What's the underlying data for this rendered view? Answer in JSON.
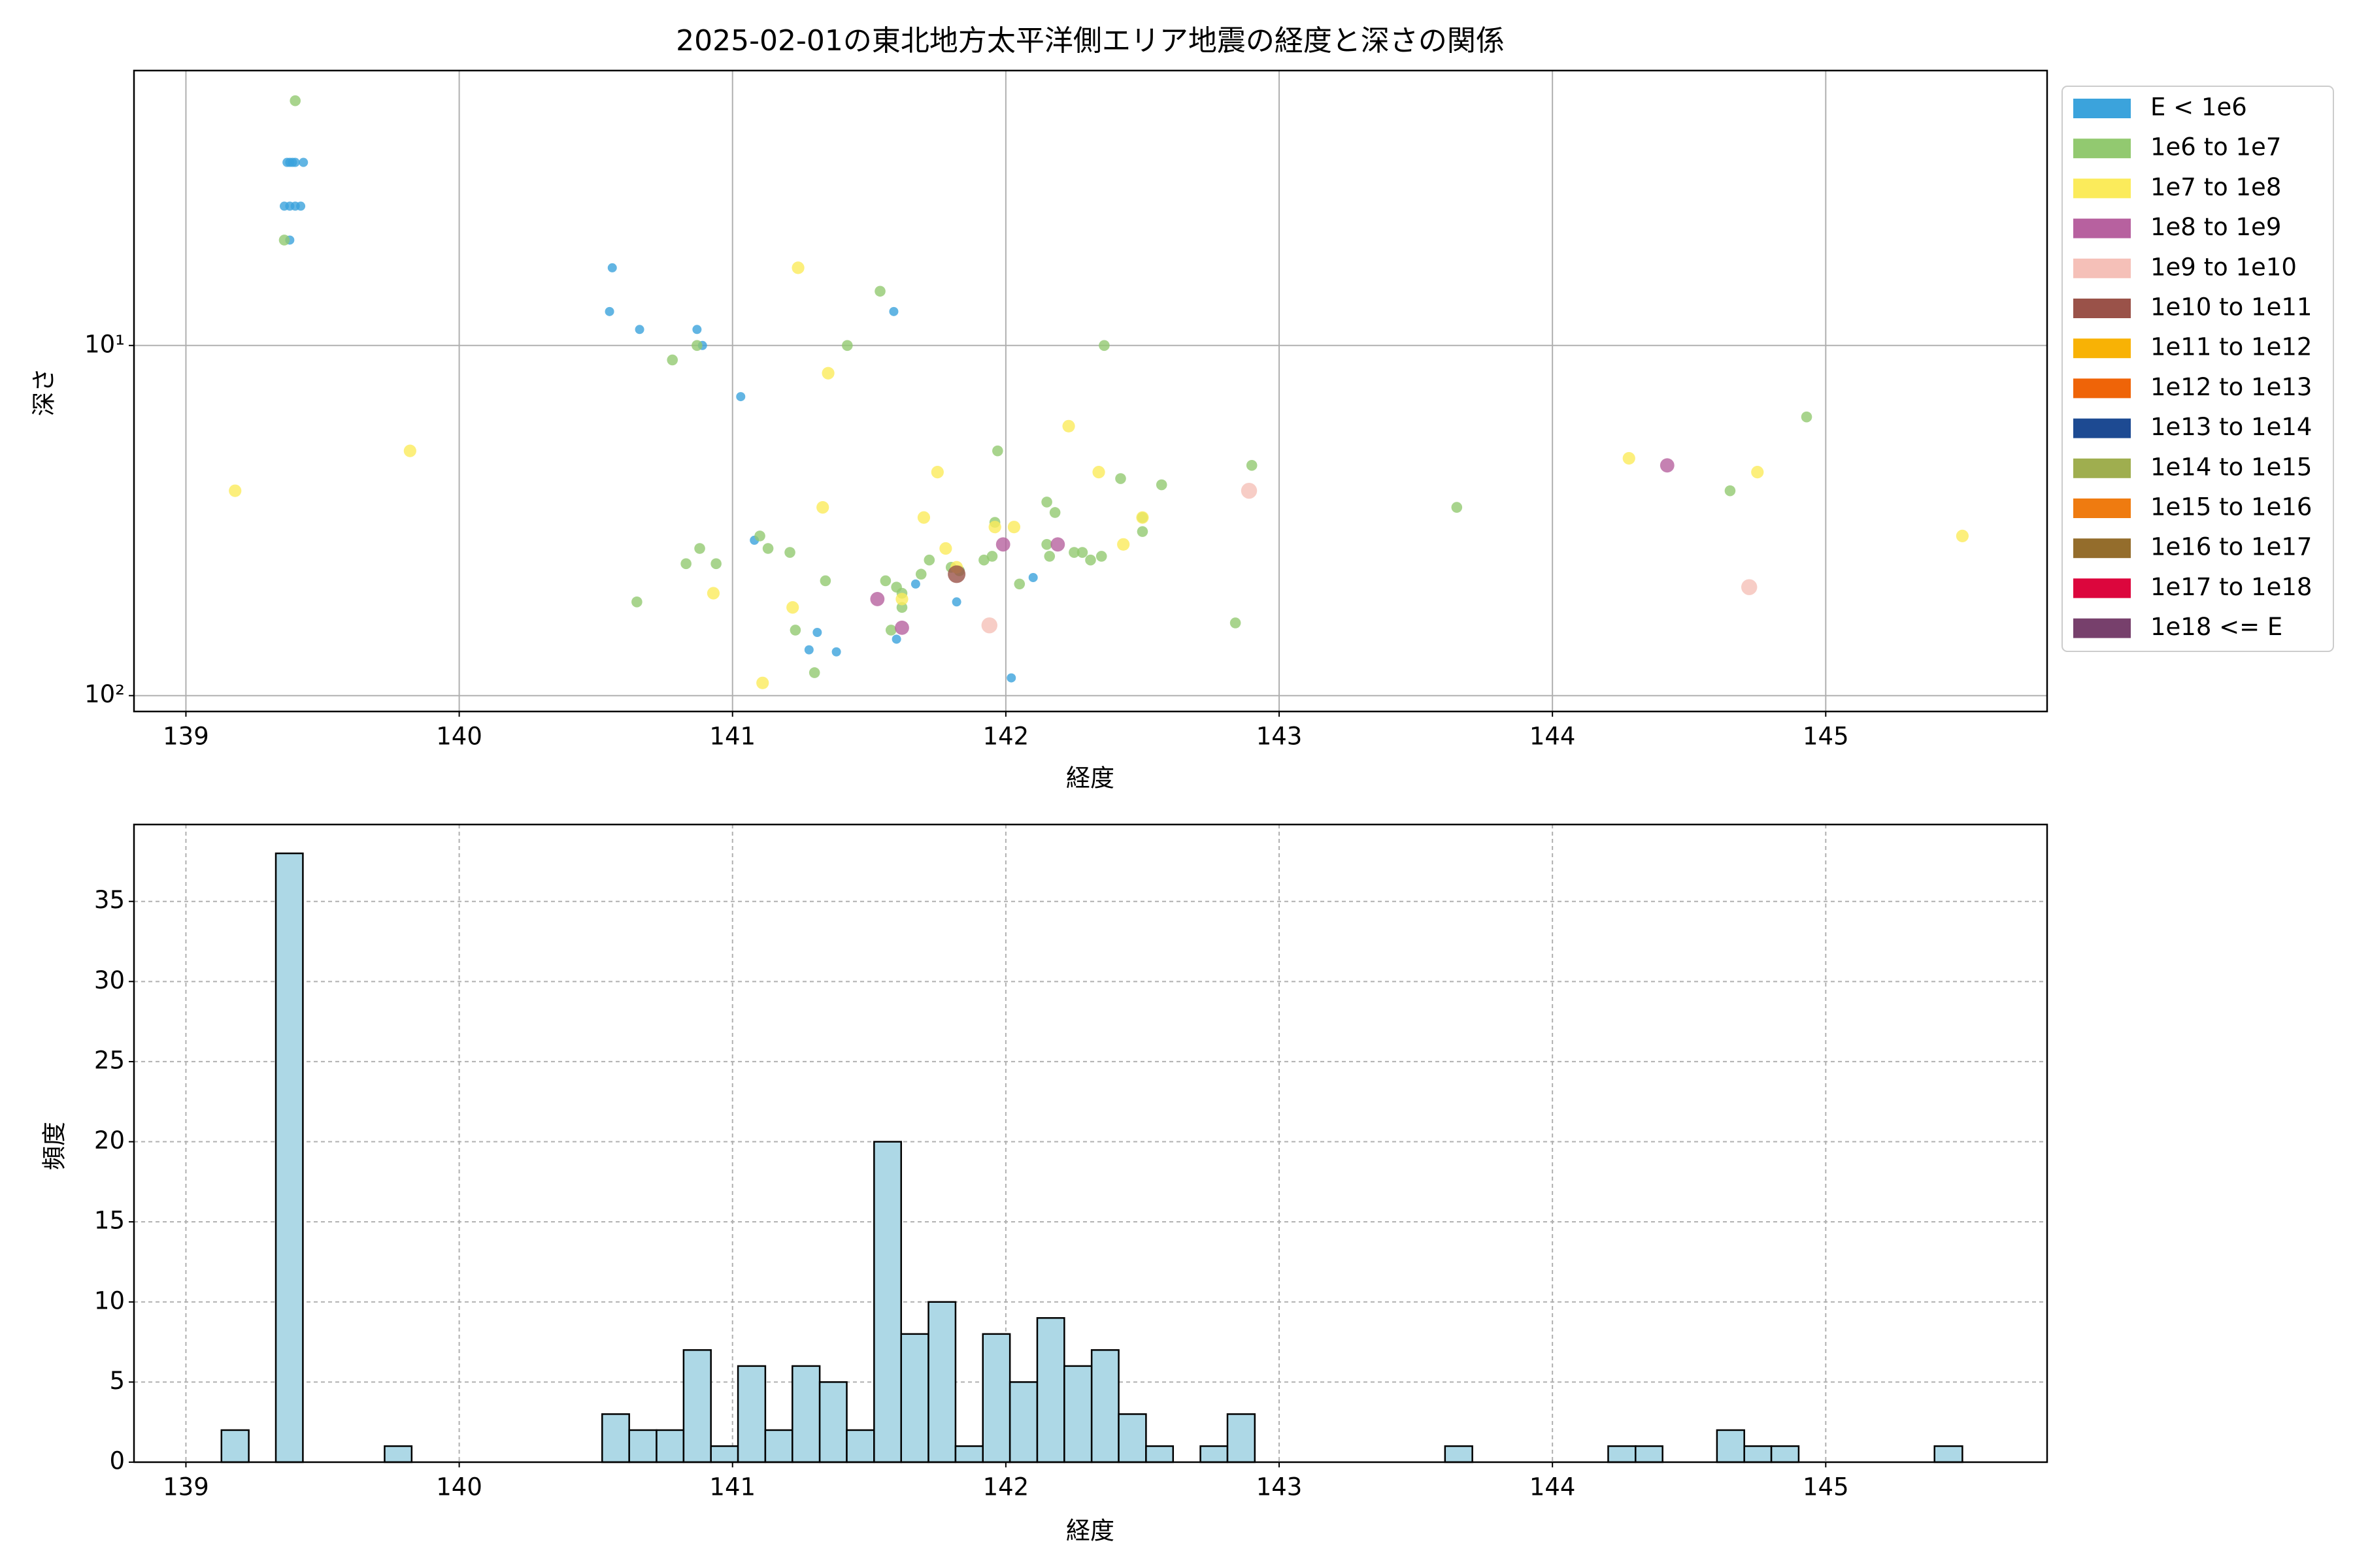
{
  "chart_data": [
    {
      "type": "scatter",
      "title": "2025-02-01の東北地方太平洋側エリア地震の経度と深さの関係",
      "xlabel": "経度",
      "ylabel": "深さ",
      "xlim": [
        138.81,
        145.81
      ],
      "xticks": [
        139,
        140,
        141,
        142,
        143,
        144,
        145
      ],
      "ylim": [
        111,
        1.64
      ],
      "yticks": [
        {
          "value": 10,
          "label": "10¹"
        },
        {
          "value": 100,
          "label": "10²"
        }
      ],
      "log_y": true,
      "grid": true,
      "series": [
        {
          "name": "E < 1e6",
          "color": "#3ba3dc",
          "x": [
            139.37,
            139.38,
            139.39,
            139.4,
            139.43,
            139.36,
            139.38,
            139.4,
            139.42,
            139.38,
            140.56,
            140.55,
            140.66,
            140.87,
            140.89,
            141.59,
            141.03,
            141.08,
            141.67,
            141.82,
            142.1,
            141.31,
            141.28,
            141.38,
            141.6,
            142.02
          ],
          "y": [
            3,
            3,
            3,
            3,
            3,
            4,
            4,
            4,
            4,
            5,
            6,
            8,
            9,
            9,
            10,
            8,
            14,
            36,
            48,
            54,
            46,
            66,
            74,
            75,
            69,
            89
          ]
        },
        {
          "name": "1e6 to 1e7",
          "color": "#92c970",
          "x": [
            139.4,
            139.36,
            141.54,
            141.42,
            140.78,
            140.87,
            142.36,
            140.65,
            140.83,
            140.88,
            140.94,
            141.1,
            141.13,
            141.21,
            141.23,
            141.34,
            141.3,
            141.56,
            141.6,
            141.62,
            141.58,
            141.62,
            141.69,
            141.72,
            141.8,
            141.83,
            141.92,
            141.95,
            141.96,
            141.97,
            142.05,
            142.15,
            142.18,
            142.15,
            142.16,
            142.25,
            142.28,
            142.31,
            142.35,
            142.42,
            142.5,
            142.5,
            142.57,
            142.84,
            142.9,
            143.65,
            144.65,
            144.93
          ],
          "y": [
            2,
            5,
            7,
            10,
            11,
            10,
            10,
            54,
            42,
            38,
            42,
            35,
            38,
            39,
            65,
            47,
            86,
            47,
            49,
            51,
            65,
            56,
            45,
            41,
            43,
            44,
            41,
            40,
            32,
            20,
            48,
            28,
            30,
            37,
            40,
            39,
            39,
            41,
            40,
            24,
            31,
            34,
            25,
            62,
            22,
            29,
            26,
            16
          ]
        },
        {
          "name": "1e7 to 1e8",
          "color": "#fbeb5b",
          "x": [
            139.18,
            139.82,
            140.93,
            141.24,
            141.35,
            141.33,
            141.22,
            141.11,
            141.62,
            141.7,
            141.75,
            141.78,
            141.82,
            141.96,
            142.03,
            142.23,
            142.34,
            142.43,
            142.5,
            144.28,
            144.75,
            145.5
          ],
          "y": [
            26,
            20,
            51,
            6,
            12,
            29,
            56,
            92,
            53,
            31,
            23,
            38,
            43,
            33,
            33,
            17,
            23,
            37,
            31,
            21,
            23,
            35
          ]
        },
        {
          "name": "1e8 to 1e9",
          "color": "#b7619f",
          "x": [
            141.53,
            141.62,
            141.99,
            142.19,
            144.42
          ],
          "y": [
            53,
            64,
            37,
            37,
            22
          ]
        },
        {
          "name": "1e9 to 1e10",
          "color": "#f5c0b8",
          "x": [
            141.94,
            142.89,
            144.72
          ],
          "y": [
            63,
            26,
            49
          ]
        },
        {
          "name": "1e10 to 1e11",
          "color": "#9a5249",
          "x": [
            141.82
          ],
          "y": [
            45
          ]
        },
        {
          "name": "1e11 to 1e12",
          "color": "#f8b205",
          "x": [],
          "y": []
        },
        {
          "name": "1e12 to 1e13",
          "color": "#ef6408",
          "x": [],
          "y": []
        },
        {
          "name": "1e13 to 1e14",
          "color": "#1d4a92",
          "x": [],
          "y": []
        },
        {
          "name": "1e14 to 1e15",
          "color": "#9fae4f",
          "x": [],
          "y": []
        },
        {
          "name": "1e15 to 1e16",
          "color": "#ef7b10",
          "x": [],
          "y": []
        },
        {
          "name": "1e16 to 1e17",
          "color": "#946d2c",
          "x": [],
          "y": []
        },
        {
          "name": "1e17 to 1e18",
          "color": "#dc063d",
          "x": [],
          "y": []
        },
        {
          "name": "1e18 <= E",
          "color": "#77406c",
          "x": [],
          "y": []
        }
      ]
    },
    {
      "type": "histogram",
      "xlabel": "経度",
      "ylabel": "頻度",
      "xlim": [
        138.81,
        145.81
      ],
      "xticks": [
        139,
        140,
        141,
        142,
        143,
        144,
        145
      ],
      "ylim": [
        0,
        39.8
      ],
      "yticks": [
        0,
        5,
        10,
        15,
        20,
        25,
        30,
        35
      ],
      "grid": true,
      "color": "#add8e6",
      "edgecolor": "#000000",
      "bins": [
        139.13,
        139.23,
        139.329,
        139.428,
        139.528,
        139.627,
        139.727,
        139.826,
        139.926,
        140.025,
        140.125,
        140.224,
        140.324,
        140.423,
        140.523,
        140.622,
        140.722,
        140.821,
        140.921,
        141.02,
        141.12,
        141.219,
        141.319,
        141.418,
        141.518,
        141.617,
        141.717,
        141.816,
        141.916,
        142.015,
        142.115,
        142.214,
        142.314,
        142.413,
        142.513,
        142.612,
        142.712,
        142.811,
        142.911,
        143.01,
        143.11,
        143.209,
        143.309,
        143.408,
        143.508,
        143.607,
        143.707,
        143.806,
        143.906,
        144.005,
        144.105,
        144.204,
        144.304,
        144.403,
        144.503,
        144.602,
        144.702,
        144.801,
        144.901,
        145.0,
        145.1,
        145.199,
        145.299,
        145.398,
        145.5
      ],
      "values": [
        2,
        0,
        38,
        0,
        0,
        0,
        1,
        0,
        0,
        0,
        0,
        0,
        0,
        0,
        3,
        2,
        2,
        7,
        1,
        6,
        2,
        6,
        5,
        2,
        20,
        8,
        10,
        1,
        8,
        5,
        9,
        6,
        7,
        3,
        1,
        0,
        1,
        3,
        0,
        0,
        0,
        0,
        0,
        0,
        0,
        1,
        0,
        0,
        0,
        0,
        0,
        1,
        1,
        0,
        0,
        2,
        1,
        1,
        0,
        0,
        0,
        0,
        0,
        1
      ]
    }
  ]
}
